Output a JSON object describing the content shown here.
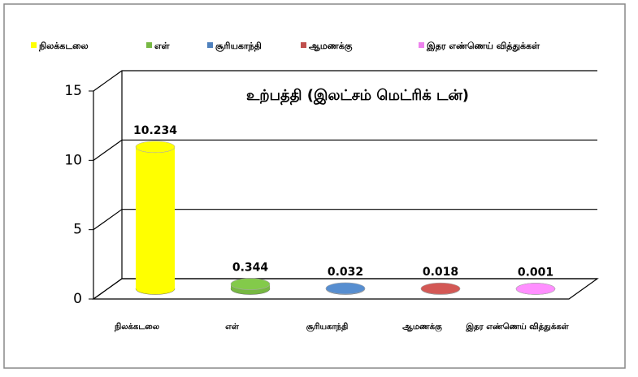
{
  "chart_data": {
    "type": "cylinder-bar",
    "title": "உற்பத்தி (இலட்சம் மெட்ரிக் டன்)",
    "categories": [
      "நிலக்கடலை",
      "எள்",
      "சூரியகாந்தி",
      "ஆமணக்கு",
      "இதர எண்ணெய் வித்துக்கள்"
    ],
    "values": [
      10.234,
      0.344,
      0.032,
      0.018,
      0.001
    ],
    "colors": [
      "#ffff00",
      "#77b843",
      "#4f81bd",
      "#c0504d",
      "#ee82ee"
    ],
    "ylim": [
      0,
      15
    ],
    "yticks": [
      0,
      5,
      10,
      15
    ],
    "grid": true,
    "legend": "top"
  }
}
